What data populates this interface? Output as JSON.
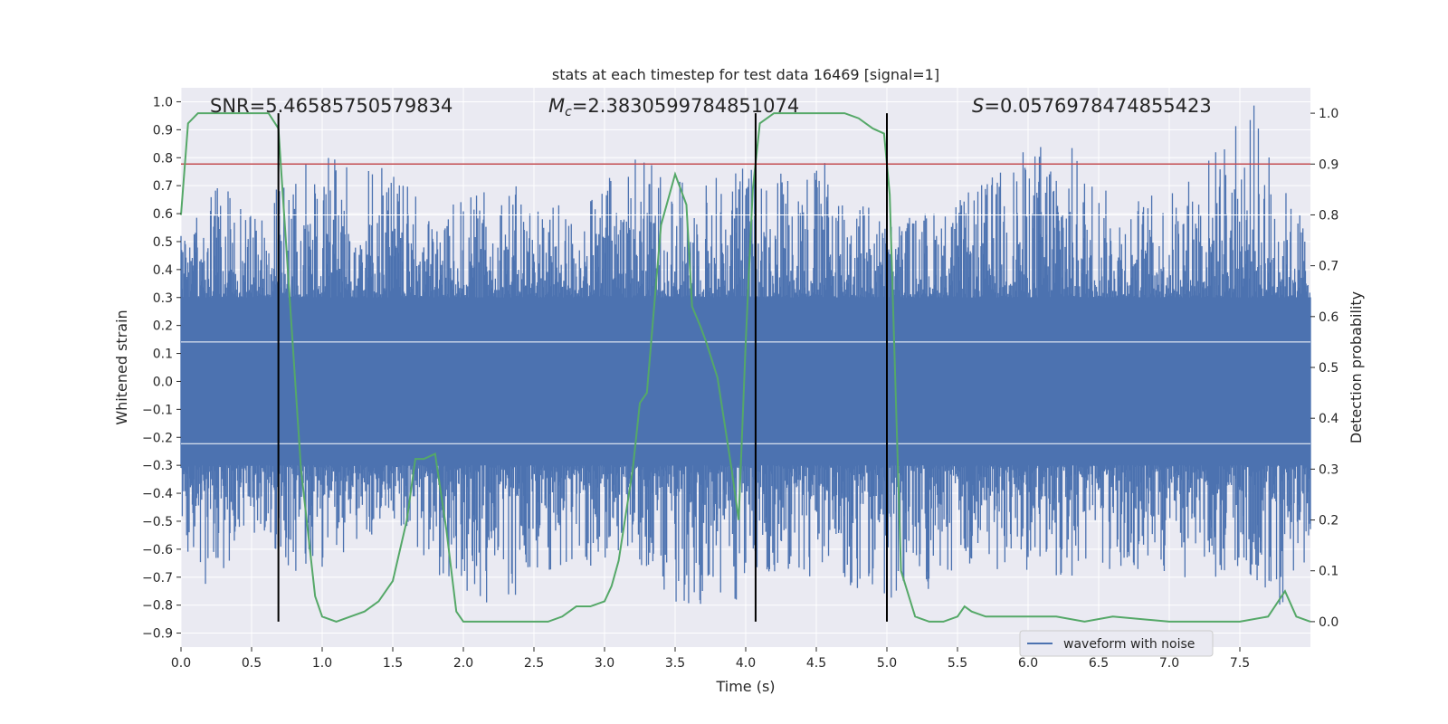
{
  "chart_data": {
    "type": "line",
    "title": "stats at each timestep for test data 16469 [signal=1]",
    "xlabel": "Time (s)",
    "ylabel": "Whitened strain",
    "y2label": "Detection probability",
    "xlim": [
      0.0,
      8.0
    ],
    "ylim": [
      -0.95,
      1.05
    ],
    "y2lim": [
      -0.05,
      1.05
    ],
    "xticks": [
      "0.0",
      "0.5",
      "1.0",
      "1.5",
      "2.0",
      "2.5",
      "3.0",
      "3.5",
      "4.0",
      "4.5",
      "5.0",
      "5.5",
      "6.0",
      "6.5",
      "7.0",
      "7.5"
    ],
    "yticks": [
      "1.0",
      "0.9",
      "0.8",
      "0.7",
      "0.6",
      "0.5",
      "0.4",
      "0.3",
      "0.2",
      "0.1",
      "0.0",
      "-0.1",
      "-0.2",
      "-0.3",
      "-0.4",
      "-0.5",
      "-0.6",
      "-0.7",
      "-0.8",
      "-0.9"
    ],
    "y2ticks": [
      "1.0",
      "0.9",
      "0.8",
      "0.7",
      "0.6",
      "0.5",
      "0.4",
      "0.3",
      "0.2",
      "0.1",
      "0.0"
    ],
    "annotations": {
      "snr": "SNR=5.46585750579834",
      "mc_symbol": "M",
      "mc_sub": "c",
      "mc_value": "=2.3830599784851074",
      "s_symbol": "S",
      "s_value": "=0.0576978474855423"
    },
    "legend": {
      "label": "waveform with noise",
      "position": "lower-right"
    },
    "threshold": {
      "y2": 0.9,
      "color": "#c44e52"
    },
    "vertical_markers_x": [
      0.69,
      4.07,
      5.0
    ],
    "series": [
      {
        "name": "waveform with noise",
        "color": "#4c72b0",
        "envelope_upper": [
          [
            0.0,
            0.63
          ],
          [
            0.1,
            0.66
          ],
          [
            0.25,
            0.72
          ],
          [
            0.5,
            0.6
          ],
          [
            1.0,
            0.85
          ],
          [
            1.25,
            0.79
          ],
          [
            1.42,
            0.83
          ],
          [
            1.75,
            0.6
          ],
          [
            2.3,
            0.72
          ],
          [
            2.8,
            0.6
          ],
          [
            3.2,
            0.85
          ],
          [
            3.5,
            0.72
          ],
          [
            4.1,
            0.8
          ],
          [
            4.6,
            0.79
          ],
          [
            5.0,
            0.58
          ],
          [
            5.5,
            0.65
          ],
          [
            6.2,
            0.92
          ],
          [
            6.6,
            0.66
          ],
          [
            7.0,
            0.68
          ],
          [
            7.5,
            0.95
          ],
          [
            7.6,
            1.0
          ],
          [
            7.85,
            0.66
          ],
          [
            8.0,
            0.6
          ]
        ],
        "envelope_lower": [
          [
            0.0,
            -0.6
          ],
          [
            0.2,
            -0.75
          ],
          [
            0.5,
            -0.55
          ],
          [
            0.9,
            -0.72
          ],
          [
            1.2,
            -0.6
          ],
          [
            1.5,
            -0.5
          ],
          [
            2.1,
            -0.85
          ],
          [
            2.6,
            -0.7
          ],
          [
            3.2,
            -0.62
          ],
          [
            3.5,
            -0.8
          ],
          [
            3.9,
            -0.8
          ],
          [
            4.2,
            -0.68
          ],
          [
            4.6,
            -0.72
          ],
          [
            5.0,
            -0.8
          ],
          [
            5.3,
            -0.75
          ],
          [
            5.8,
            -0.68
          ],
          [
            6.5,
            -0.72
          ],
          [
            7.0,
            -0.7
          ],
          [
            7.6,
            -0.72
          ],
          [
            7.8,
            -0.82
          ],
          [
            8.0,
            -0.68
          ]
        ]
      },
      {
        "name": "detection probability",
        "axis": "right",
        "color": "#55a868",
        "x": [
          0.0,
          0.05,
          0.12,
          0.3,
          0.5,
          0.62,
          0.69,
          0.75,
          0.85,
          0.95,
          1.0,
          1.1,
          1.2,
          1.3,
          1.4,
          1.5,
          1.6,
          1.66,
          1.72,
          1.8,
          1.88,
          1.95,
          2.0,
          2.1,
          2.3,
          2.5,
          2.6,
          2.7,
          2.8,
          2.9,
          3.0,
          3.05,
          3.1,
          3.2,
          3.25,
          3.3,
          3.4,
          3.5,
          3.58,
          3.62,
          3.68,
          3.72,
          3.8,
          3.9,
          3.95,
          4.0,
          4.05,
          4.1,
          4.2,
          4.3,
          4.5,
          4.7,
          4.8,
          4.9,
          4.98,
          5.02,
          5.1,
          5.2,
          5.3,
          5.4,
          5.5,
          5.55,
          5.6,
          5.7,
          6.0,
          6.2,
          6.4,
          6.6,
          7.0,
          7.5,
          7.7,
          7.82,
          7.9,
          8.0
        ],
        "y": [
          0.8,
          0.98,
          1.0,
          1.0,
          1.0,
          1.0,
          0.97,
          0.72,
          0.3,
          0.05,
          0.01,
          0.0,
          0.01,
          0.02,
          0.04,
          0.08,
          0.2,
          0.32,
          0.32,
          0.33,
          0.18,
          0.02,
          0.0,
          0.0,
          0.0,
          0.0,
          0.0,
          0.01,
          0.03,
          0.03,
          0.04,
          0.07,
          0.12,
          0.3,
          0.43,
          0.45,
          0.78,
          0.88,
          0.82,
          0.62,
          0.58,
          0.55,
          0.48,
          0.3,
          0.2,
          0.55,
          0.85,
          0.98,
          1.0,
          1.0,
          1.0,
          1.0,
          0.99,
          0.97,
          0.96,
          0.84,
          0.1,
          0.01,
          0.0,
          0.0,
          0.01,
          0.03,
          0.02,
          0.01,
          0.01,
          0.01,
          0.0,
          0.01,
          0.0,
          0.0,
          0.01,
          0.06,
          0.01,
          0.0
        ]
      }
    ]
  }
}
